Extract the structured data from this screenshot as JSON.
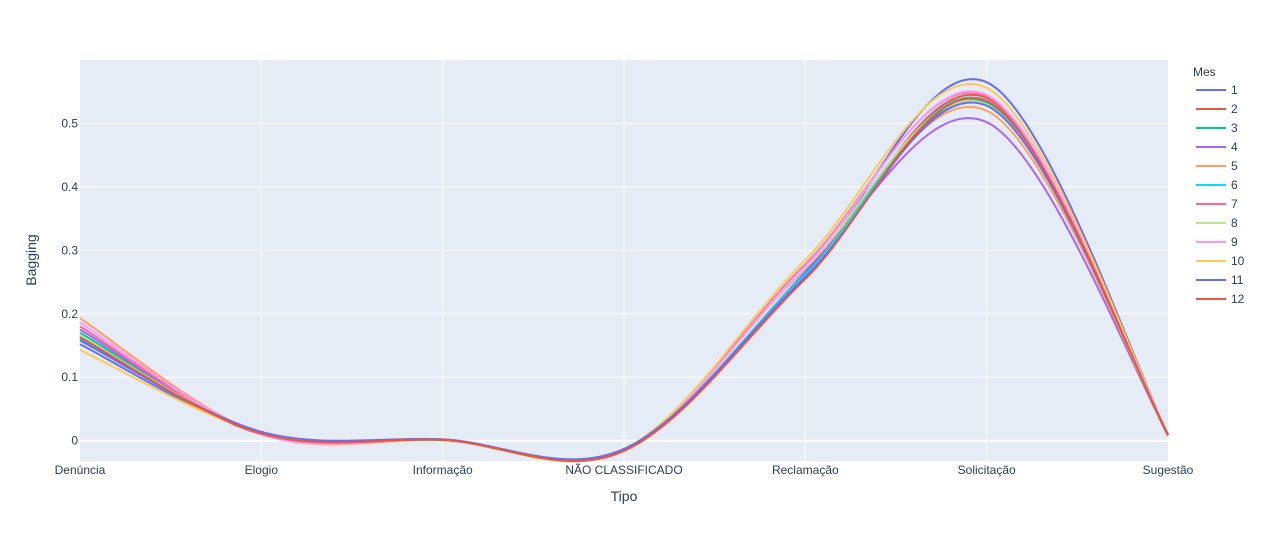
{
  "chart_data": {
    "type": "line",
    "xlabel": "Tipo",
    "ylabel": "Bagging",
    "categories": [
      "Denúncia",
      "Elogio",
      "Informação",
      "NÃO CLASSIFICADO",
      "Reclamação",
      "Solicitação",
      "Sugestão"
    ],
    "ylim": [
      -0.032,
      0.6
    ],
    "yticks": [
      0,
      0.1,
      0.2,
      0.3,
      0.4,
      0.5
    ],
    "ytick_labels": [
      "0",
      "0.1",
      "0.2",
      "0.3",
      "0.4",
      "0.5"
    ],
    "line_shape": "spline",
    "grid": true,
    "legend_title": "Mes",
    "legend_position": "right",
    "series": [
      {
        "name": "1",
        "color": "#636efa",
        "values": [
          0.152,
          0.012,
          0.001,
          -0.014,
          0.265,
          0.565,
          0.01
        ]
      },
      {
        "name": "2",
        "color": "#EF553B",
        "values": [
          0.162,
          0.01,
          0.001,
          -0.016,
          0.262,
          0.54,
          0.009
        ]
      },
      {
        "name": "3",
        "color": "#00cc96",
        "values": [
          0.17,
          0.012,
          0.002,
          -0.015,
          0.258,
          0.532,
          0.01
        ]
      },
      {
        "name": "4",
        "color": "#ab63fa",
        "values": [
          0.175,
          0.011,
          0.001,
          -0.014,
          0.27,
          0.502,
          0.01
        ]
      },
      {
        "name": "5",
        "color": "#FFA15A",
        "values": [
          0.193,
          0.01,
          0.001,
          -0.015,
          0.272,
          0.52,
          0.01
        ]
      },
      {
        "name": "6",
        "color": "#19d3f3",
        "values": [
          0.16,
          0.012,
          0.002,
          -0.014,
          0.262,
          0.536,
          0.01
        ]
      },
      {
        "name": "7",
        "color": "#FF6692",
        "values": [
          0.18,
          0.01,
          0.002,
          -0.015,
          0.278,
          0.543,
          0.01
        ]
      },
      {
        "name": "8",
        "color": "#B6E880",
        "values": [
          0.165,
          0.012,
          0.001,
          -0.014,
          0.272,
          0.53,
          0.01
        ]
      },
      {
        "name": "9",
        "color": "#FF97FF",
        "values": [
          0.186,
          0.01,
          0.002,
          -0.015,
          0.275,
          0.545,
          0.01
        ]
      },
      {
        "name": "10",
        "color": "#FECB52",
        "values": [
          0.143,
          0.013,
          0.001,
          -0.014,
          0.285,
          0.556,
          0.01
        ]
      },
      {
        "name": "11",
        "color": "#636efa",
        "values": [
          0.158,
          0.014,
          0.002,
          -0.013,
          0.258,
          0.528,
          0.01
        ]
      },
      {
        "name": "12",
        "color": "#EF553B",
        "values": [
          0.163,
          0.011,
          0.001,
          -0.016,
          0.255,
          0.535,
          0.008
        ]
      }
    ]
  }
}
